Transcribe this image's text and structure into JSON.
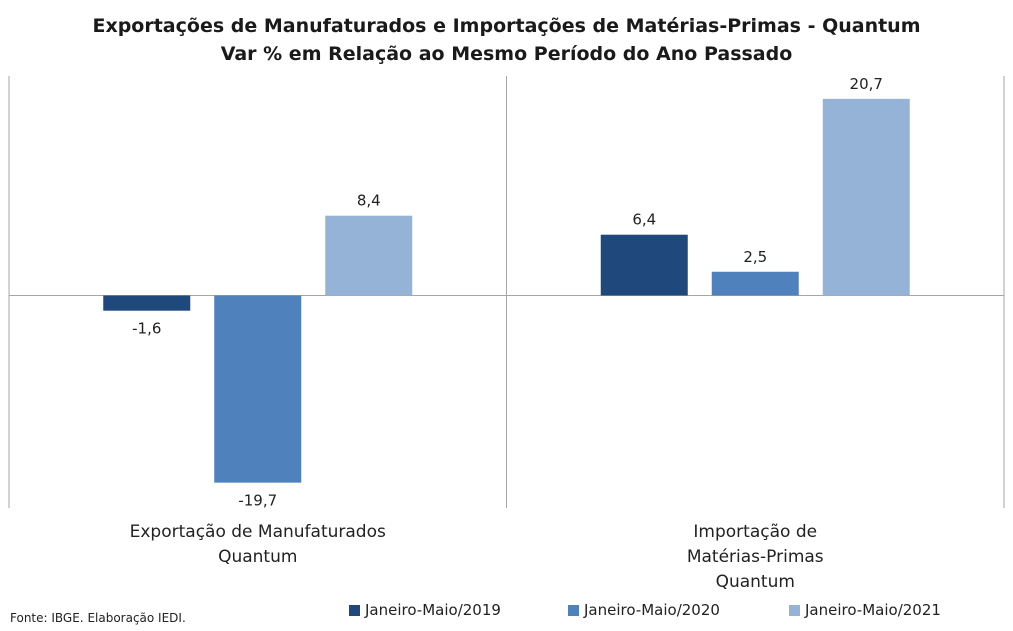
{
  "title_line1": "Exportações de Manufaturados e Importações de Matérias-Primas - Quantum",
  "title_line2": "Var % em Relação ao Mesmo Período do Ano Passado",
  "source": "Fonte: IBGE. Elaboração IEDI.",
  "colors": {
    "s2019": "#1f497d",
    "s2020": "#4f81bd",
    "s2021": "#95b3d7",
    "axis": "#a6a6a6"
  },
  "chart_data": {
    "type": "bar",
    "title": "Exportações de Manufaturados e Importações de Matérias-Primas - Quantum",
    "subtitle": "Var % em Relação ao Mesmo Período do Ano Passado",
    "categories": [
      [
        "Exportação de Manufaturados",
        "Quantum"
      ],
      [
        "Importação de",
        "Matérias-Primas",
        "Quantum"
      ]
    ],
    "series": [
      {
        "name": "Janeiro-Maio/2019",
        "values": [
          -1.6,
          6.4
        ],
        "labels": [
          "-1,6",
          "6,4"
        ]
      },
      {
        "name": "Janeiro-Maio/2020",
        "values": [
          -19.7,
          2.5
        ],
        "labels": [
          "-19,7",
          "2,5"
        ]
      },
      {
        "name": "Janeiro-Maio/2021",
        "values": [
          8.4,
          20.7
        ],
        "labels": [
          "8,4",
          "20,7"
        ]
      }
    ],
    "ylim": [
      -21.5,
      23
    ],
    "grid": false,
    "legend_position": "bottom"
  }
}
